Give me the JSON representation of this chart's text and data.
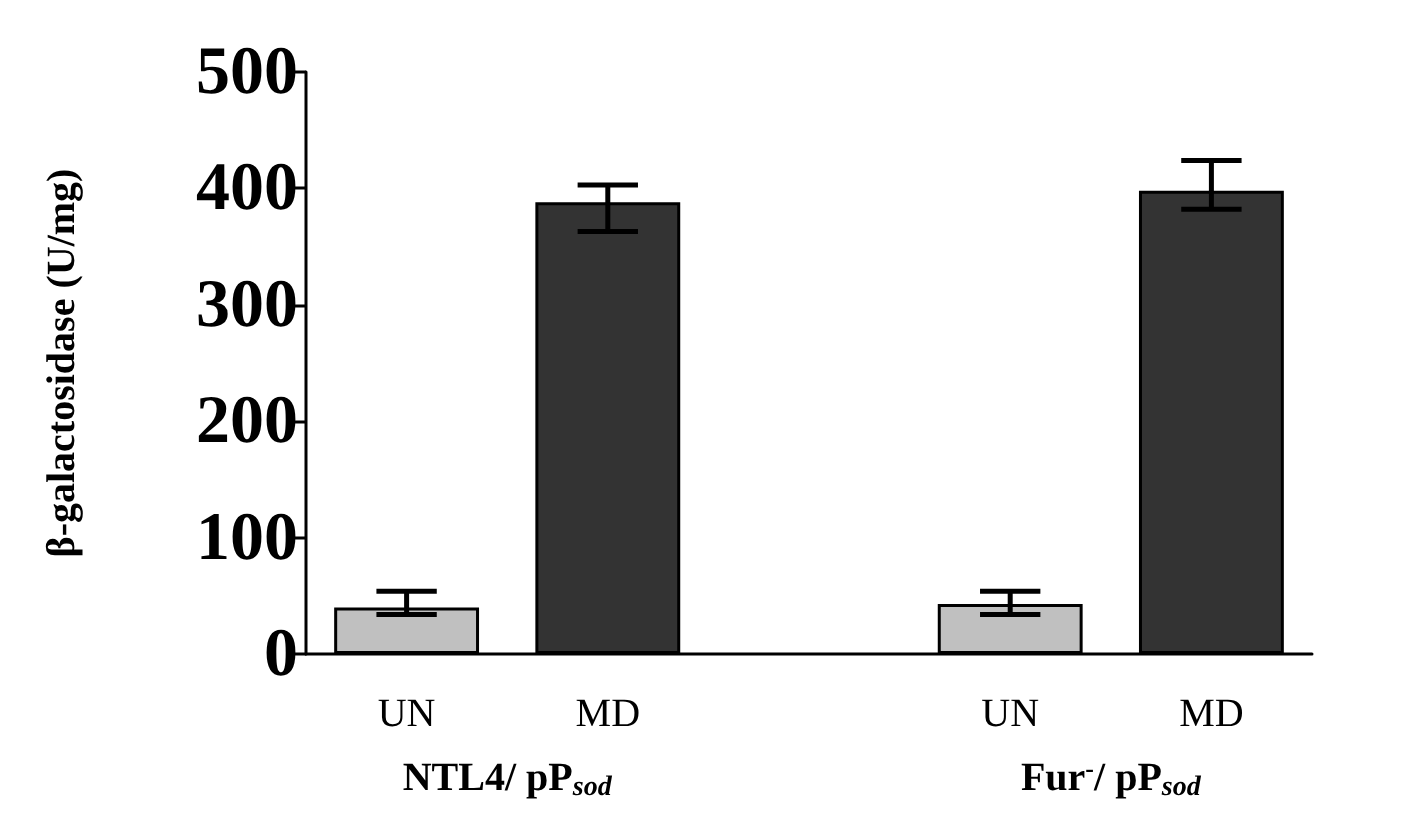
{
  "chart_data": {
    "type": "bar",
    "ylabel": "β-galactosidase (U/mg)",
    "categories": [
      "UN",
      "MD",
      null,
      "UN",
      "MD"
    ],
    "values": [
      40,
      388,
      null,
      43,
      398
    ],
    "colors": [
      "#c0c0c0",
      "#333333",
      null,
      "#c0c0c0",
      "#333333"
    ],
    "errors": [
      [
        34,
        54
      ],
      [
        363,
        403
      ],
      null,
      [
        34,
        54
      ],
      [
        382,
        424
      ]
    ],
    "ylim": [
      0,
      500
    ],
    "yticks": [
      0,
      100,
      200,
      300,
      400,
      500
    ],
    "grid": false,
    "annotations": [
      "NTL4/ pP$_{sod}$",
      "Fur$^{-}$/ pP$_{sod}$"
    ]
  }
}
